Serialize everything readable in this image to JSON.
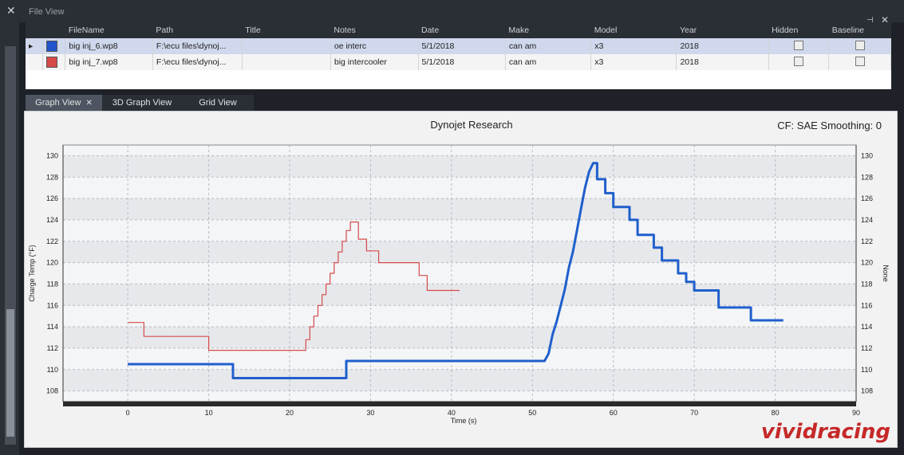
{
  "window": {
    "title": "File View",
    "close_icon": "close-icon",
    "pin_icon": "pin-icon"
  },
  "file_table": {
    "headers": [
      "FileName",
      "Path",
      "Title",
      "Notes",
      "Date",
      "Make",
      "Model",
      "Year",
      "Hidden",
      "Baseline"
    ],
    "rows": [
      {
        "color": "#2255cc",
        "file": "big inj_6.wp8",
        "path": "F:\\ecu files\\dynoj...",
        "title": "",
        "notes": "oe interc",
        "date": "5/1/2018",
        "make": "can am",
        "model": "x3",
        "year": "2018"
      },
      {
        "color": "#d64a4a",
        "file": "big inj_7.wp8",
        "path": "F:\\ecu files\\dynoj...",
        "title": "",
        "notes": "big intercooler",
        "date": "5/1/2018",
        "make": "can am",
        "model": "x3",
        "year": "2018"
      }
    ]
  },
  "tabs": [
    "Graph View",
    "3D Graph View",
    "Grid View"
  ],
  "chart_header": {
    "title": "Dynojet Research",
    "cf_text": "CF: SAE Smoothing: 0"
  },
  "watermark": "vividracing",
  "chart_data": {
    "type": "line",
    "title": "Dynojet Research",
    "xlabel": "Time (s)",
    "ylabel": "Charge Temp (°F)",
    "y2label": "None",
    "xlim": [
      -8,
      90
    ],
    "ylim": [
      107,
      131
    ],
    "xticks": [
      0,
      10,
      20,
      30,
      40,
      50,
      60,
      70,
      80,
      90
    ],
    "yticks": [
      108,
      110,
      112,
      114,
      116,
      118,
      120,
      122,
      124,
      126,
      128,
      130
    ],
    "grid": true,
    "series": [
      {
        "color": "#d64a4a",
        "width": 1.2,
        "points": [
          [
            0,
            114.4
          ],
          [
            2,
            114.4
          ],
          [
            2,
            113.1
          ],
          [
            10,
            113.1
          ],
          [
            10,
            111.8
          ],
          [
            22,
            111.8
          ],
          [
            22,
            112.8
          ],
          [
            22.5,
            112.8
          ],
          [
            22.5,
            114
          ],
          [
            23,
            114
          ],
          [
            23,
            115
          ],
          [
            23.5,
            115
          ],
          [
            23.5,
            116
          ],
          [
            24,
            116
          ],
          [
            24,
            117
          ],
          [
            24.5,
            117
          ],
          [
            24.5,
            118
          ],
          [
            25,
            118
          ],
          [
            25,
            119
          ],
          [
            25.5,
            119
          ],
          [
            25.5,
            120
          ],
          [
            26,
            120
          ],
          [
            26,
            121
          ],
          [
            26.5,
            121
          ],
          [
            26.5,
            122
          ],
          [
            27,
            122
          ],
          [
            27,
            123
          ],
          [
            27.5,
            123
          ],
          [
            27.5,
            123.8
          ],
          [
            28.5,
            123.8
          ],
          [
            28.5,
            122.2
          ],
          [
            29.5,
            122.2
          ],
          [
            29.5,
            121.1
          ],
          [
            31,
            121.1
          ],
          [
            31,
            120
          ],
          [
            36,
            120
          ],
          [
            36,
            118.8
          ],
          [
            37,
            118.8
          ],
          [
            37,
            117.4
          ],
          [
            41,
            117.4
          ]
        ]
      },
      {
        "color": "#1f5fcc",
        "width": 3,
        "points": [
          [
            0,
            110.5
          ],
          [
            13,
            110.5
          ],
          [
            13,
            109.2
          ],
          [
            27,
            109.2
          ],
          [
            27,
            110.8
          ],
          [
            51.5,
            110.8
          ],
          [
            52,
            111.5
          ],
          [
            52.5,
            113.3
          ],
          [
            53,
            114.5
          ],
          [
            53.5,
            116
          ],
          [
            54,
            117.5
          ],
          [
            54.5,
            119.5
          ],
          [
            55,
            121
          ],
          [
            55.5,
            123
          ],
          [
            56,
            125
          ],
          [
            56.5,
            127
          ],
          [
            57,
            128.5
          ],
          [
            57.5,
            129.3
          ],
          [
            58,
            129.3
          ],
          [
            58,
            127.8
          ],
          [
            59,
            127.8
          ],
          [
            59,
            126.5
          ],
          [
            60,
            126.5
          ],
          [
            60,
            125.2
          ],
          [
            62,
            125.2
          ],
          [
            62,
            124
          ],
          [
            63,
            124
          ],
          [
            63,
            122.6
          ],
          [
            65,
            122.6
          ],
          [
            65,
            121.4
          ],
          [
            66,
            121.4
          ],
          [
            66,
            120.2
          ],
          [
            68,
            120.2
          ],
          [
            68,
            119
          ],
          [
            69,
            119
          ],
          [
            69,
            118.2
          ],
          [
            70,
            118.2
          ],
          [
            70,
            117.4
          ],
          [
            73,
            117.4
          ],
          [
            73,
            115.8
          ],
          [
            77,
            115.8
          ],
          [
            77,
            114.6
          ],
          [
            81,
            114.6
          ]
        ]
      }
    ]
  }
}
